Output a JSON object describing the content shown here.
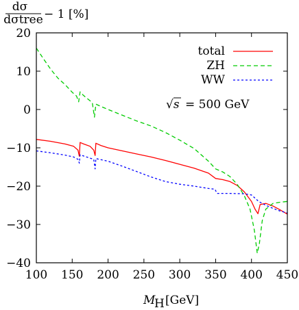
{
  "chart_data": {
    "type": "line",
    "title": "",
    "ylabel": "dσ/dσ_tree − 1 [%]",
    "ylabel_parts": {
      "num": "dσ",
      "den": "dσtree",
      "rest": "− 1 [%]"
    },
    "xlabel": "M_H [GeV]",
    "xlabel_parts": {
      "main": "M",
      "sub": "H",
      "rest": "[GeV]"
    },
    "xlim": [
      100,
      450
    ],
    "ylim": [
      -40,
      20
    ],
    "xticks": [
      100,
      150,
      200,
      250,
      300,
      350,
      400,
      450
    ],
    "yticks": [
      20,
      10,
      0,
      -10,
      -20,
      -30,
      -40
    ],
    "grid": false,
    "legend_position": "top-right",
    "annotation": {
      "sqrt_s": "√s",
      "equals": "= 500 GeV",
      "text": "√s = 500 GeV"
    },
    "series": [
      {
        "name": "total",
        "color": "#ff0000",
        "style": "solid",
        "points": [
          [
            100,
            -7.8
          ],
          [
            120,
            -8.3
          ],
          [
            140,
            -9.0
          ],
          [
            152,
            -9.6
          ],
          [
            158,
            -10.6
          ],
          [
            160,
            -12.2
          ],
          [
            161,
            -8.6
          ],
          [
            166,
            -9.0
          ],
          [
            175,
            -9.6
          ],
          [
            180,
            -10.6
          ],
          [
            182,
            -12.0
          ],
          [
            183,
            -8.8
          ],
          [
            190,
            -9.4
          ],
          [
            200,
            -10.0
          ],
          [
            220,
            -10.8
          ],
          [
            240,
            -11.6
          ],
          [
            260,
            -12.4
          ],
          [
            280,
            -13.3
          ],
          [
            300,
            -14.3
          ],
          [
            320,
            -15.3
          ],
          [
            340,
            -16.6
          ],
          [
            350,
            -18.0
          ],
          [
            360,
            -18.3
          ],
          [
            370,
            -18.8
          ],
          [
            380,
            -19.8
          ],
          [
            390,
            -21.5
          ],
          [
            400,
            -24.0
          ],
          [
            405,
            -26.0
          ],
          [
            409,
            -27.2
          ],
          [
            412,
            -24.8
          ],
          [
            420,
            -24.5
          ],
          [
            430,
            -25.2
          ],
          [
            440,
            -26.2
          ],
          [
            450,
            -27.3
          ]
        ]
      },
      {
        "name": "ZH",
        "color": "#00cc00",
        "style": "dashed",
        "points": [
          [
            100,
            16.0
          ],
          [
            110,
            13.2
          ],
          [
            120,
            10.5
          ],
          [
            130,
            8.2
          ],
          [
            140,
            6.5
          ],
          [
            150,
            4.5
          ],
          [
            156,
            3.5
          ],
          [
            159,
            2.0
          ],
          [
            161,
            4.6
          ],
          [
            165,
            3.8
          ],
          [
            170,
            3.0
          ],
          [
            178,
            1.8
          ],
          [
            181,
            -2.0
          ],
          [
            183,
            1.4
          ],
          [
            190,
            0.8
          ],
          [
            200,
            0.0
          ],
          [
            220,
            -1.5
          ],
          [
            240,
            -3.0
          ],
          [
            260,
            -4.3
          ],
          [
            280,
            -6.0
          ],
          [
            300,
            -8.0
          ],
          [
            320,
            -10.2
          ],
          [
            340,
            -13.5
          ],
          [
            350,
            -15.5
          ],
          [
            360,
            -16.3
          ],
          [
            370,
            -17.5
          ],
          [
            380,
            -19.5
          ],
          [
            390,
            -22.5
          ],
          [
            398,
            -26.0
          ],
          [
            404,
            -31.5
          ],
          [
            408,
            -37.5
          ],
          [
            411,
            -35.0
          ],
          [
            415,
            -29.0
          ],
          [
            420,
            -26.0
          ],
          [
            430,
            -24.5
          ],
          [
            440,
            -24.2
          ],
          [
            450,
            -24.0
          ]
        ]
      },
      {
        "name": "WW",
        "color": "#0000ff",
        "style": "dotted",
        "points": [
          [
            100,
            -10.8
          ],
          [
            120,
            -11.3
          ],
          [
            140,
            -11.9
          ],
          [
            152,
            -12.4
          ],
          [
            158,
            -13.0
          ],
          [
            160,
            -14.0
          ],
          [
            161,
            -11.8
          ],
          [
            170,
            -12.4
          ],
          [
            180,
            -13.0
          ],
          [
            182,
            -15.5
          ],
          [
            183,
            -12.8
          ],
          [
            200,
            -13.5
          ],
          [
            220,
            -14.8
          ],
          [
            240,
            -16.2
          ],
          [
            260,
            -17.6
          ],
          [
            280,
            -18.8
          ],
          [
            300,
            -19.5
          ],
          [
            320,
            -20.0
          ],
          [
            340,
            -20.6
          ],
          [
            349,
            -20.8
          ],
          [
            352,
            -21.9
          ],
          [
            370,
            -21.9
          ],
          [
            390,
            -22.0
          ],
          [
            400,
            -22.3
          ],
          [
            410,
            -24.0
          ],
          [
            420,
            -25.0
          ],
          [
            430,
            -25.8
          ],
          [
            440,
            -26.5
          ],
          [
            450,
            -27.0
          ]
        ]
      }
    ]
  }
}
